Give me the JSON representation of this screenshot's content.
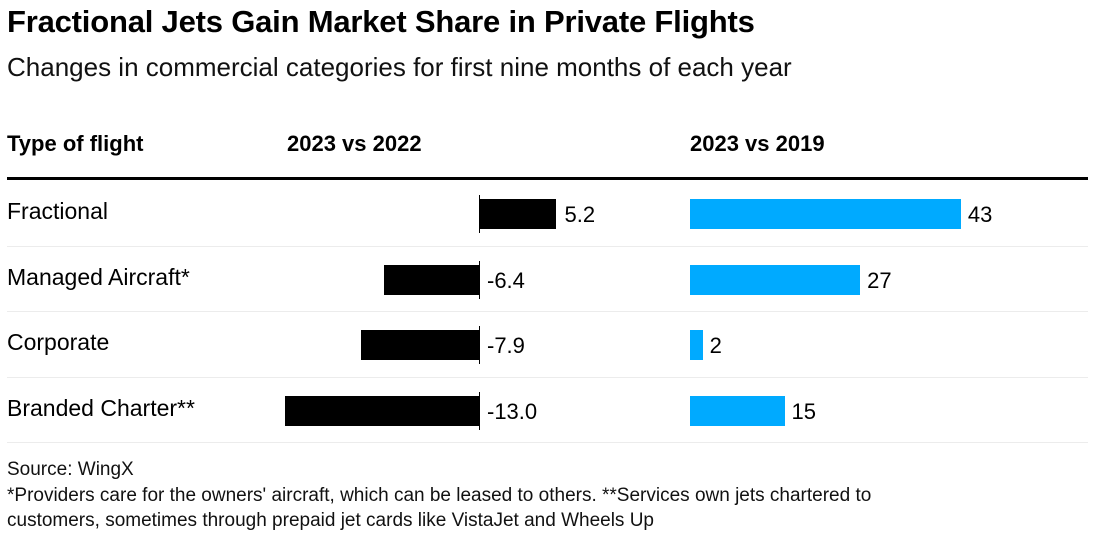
{
  "title": "Fractional Jets Gain Market Share in Private Flights",
  "subtitle": "Changes in commercial categories for first nine months of each year",
  "headers": {
    "category": "Type of flight",
    "col1": "2023 vs 2022",
    "col2": "2023 vs 2019"
  },
  "colors": {
    "col1_bar": "#000000",
    "col2_bar": "#00aaff"
  },
  "chart_data": {
    "type": "bar",
    "title": "Fractional Jets Gain Market Share in Private Flights",
    "subtitle": "Changes in commercial categories for first nine months of each year",
    "xlabel": "",
    "ylabel": "Type of flight",
    "categories": [
      "Fractional",
      "Managed Aircraft*",
      "Corporate",
      "Branded Charter**"
    ],
    "series": [
      {
        "name": "2023 vs 2022",
        "values": [
          5.2,
          -6.4,
          -7.9,
          -13.0
        ],
        "labels": [
          "5.2",
          "-6.4",
          "-7.9",
          "-13.0"
        ]
      },
      {
        "name": "2023 vs 2019",
        "values": [
          43,
          27,
          2,
          15
        ],
        "labels": [
          "43",
          "27",
          "2",
          "15"
        ]
      }
    ],
    "orientation": "horizontal",
    "grid": false
  },
  "footer": {
    "source": "Source: WingX",
    "note_line1": "*Providers care for the owners' aircraft, which can be leased to others. **Services own jets chartered to",
    "note_line2": "customers, sometimes through prepaid jet cards like VistaJet and Wheels Up"
  }
}
